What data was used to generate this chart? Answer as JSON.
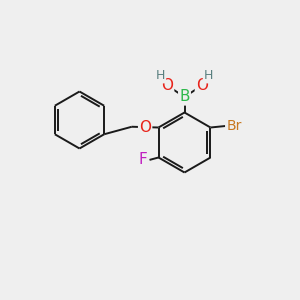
{
  "bg_color": "#efefef",
  "bond_color": "#1a1a1a",
  "atom_colors": {
    "B": "#2db84b",
    "O": "#e8221a",
    "Br": "#c87820",
    "F": "#c020c0",
    "H": "#5a8080",
    "C": "#1a1a1a"
  },
  "font_size_large": 10,
  "font_size_small": 8,
  "line_width": 1.4,
  "figsize": [
    3.0,
    3.0
  ],
  "dpi": 100
}
